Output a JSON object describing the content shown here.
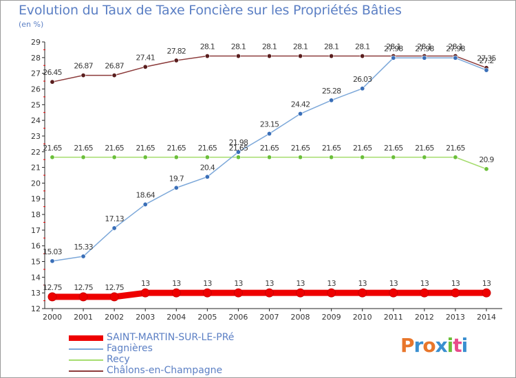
{
  "header": {
    "title": "Evolution du Taux de Taxe Foncière sur les Propriétés Bâties",
    "unit": "(en %)"
  },
  "logo": {
    "letters": [
      "P",
      "r",
      "o",
      "x",
      "i",
      "t",
      "i"
    ],
    "colors": [
      "#e8762b",
      "#3a8fd0",
      "#e8762b",
      "#3a8fd0",
      "#6bbf3a",
      "#e84b8a",
      "#3a8fd0"
    ]
  },
  "chart_data": {
    "type": "line",
    "title": "Evolution du Taux de Taxe Foncière sur les Propriétés Bâties",
    "ylabel": "(en %)",
    "xlabel": "",
    "categories": [
      "2000",
      "2001",
      "2002",
      "2003",
      "2004",
      "2005",
      "2006",
      "2007",
      "2008",
      "2009",
      "2010",
      "2011",
      "2012",
      "2013",
      "2014"
    ],
    "ylim": [
      12,
      29
    ],
    "yticks": [
      "12",
      "13",
      "14",
      "15",
      "16",
      "17",
      "18",
      "19",
      "20",
      "21",
      "22",
      "23",
      "24",
      "25",
      "26",
      "27",
      "28",
      "29"
    ],
    "grid": false,
    "series": [
      {
        "name": "SAINT-MARTIN-SUR-LE-PRé",
        "color": "#ee0000",
        "point_color": "#ee0000",
        "values": [
          12.75,
          12.75,
          12.75,
          13,
          13,
          13,
          13,
          13,
          13,
          13,
          13,
          13,
          13,
          13,
          13
        ],
        "labels": [
          "12.75",
          "12.75",
          "12.75",
          "13",
          "13",
          "13",
          "13",
          "13",
          "13",
          "13",
          "13",
          "13",
          "13",
          "13",
          "13"
        ]
      },
      {
        "name": "Fagnières",
        "color": "#7ba7d9",
        "point_color": "#3a6fb8",
        "values": [
          15.03,
          15.33,
          17.13,
          18.64,
          19.7,
          20.4,
          21.98,
          23.15,
          24.42,
          25.28,
          26.03,
          27.98,
          27.98,
          27.98,
          27.2
        ],
        "labels": [
          "15.03",
          "15.33",
          "17.13",
          "18.64",
          "19.7",
          "20.4",
          "21.98",
          "23.15",
          "24.42",
          "25.28",
          "26.03",
          "27.98",
          "27.98",
          "27.98",
          "27.2"
        ]
      },
      {
        "name": "Recy",
        "color": "#a5dc6e",
        "point_color": "#6bbf3a",
        "values": [
          21.65,
          21.65,
          21.65,
          21.65,
          21.65,
          21.65,
          21.65,
          21.65,
          21.65,
          21.65,
          21.65,
          21.65,
          21.65,
          21.65,
          20.9
        ],
        "labels": [
          "21.65",
          "21.65",
          "21.65",
          "21.65",
          "21.65",
          "21.65",
          "21.65",
          "21.65",
          "21.65",
          "21.65",
          "21.65",
          "21.65",
          "21.65",
          "21.65",
          "20.9"
        ]
      },
      {
        "name": "Châlons-en-Champagne",
        "color": "#8b3a3a",
        "point_color": "#5a1e1e",
        "values": [
          26.45,
          26.87,
          26.87,
          27.41,
          27.82,
          28.1,
          28.1,
          28.1,
          28.1,
          28.1,
          28.1,
          28.1,
          28.1,
          28.1,
          27.35
        ],
        "labels": [
          "26.45",
          "26.87",
          "26.87",
          "27.41",
          "27.82",
          "28.1",
          "28.1",
          "28.1",
          "28.1",
          "28.1",
          "28.1",
          "28.1",
          "28.1",
          "28.1",
          "27.35"
        ]
      }
    ]
  }
}
